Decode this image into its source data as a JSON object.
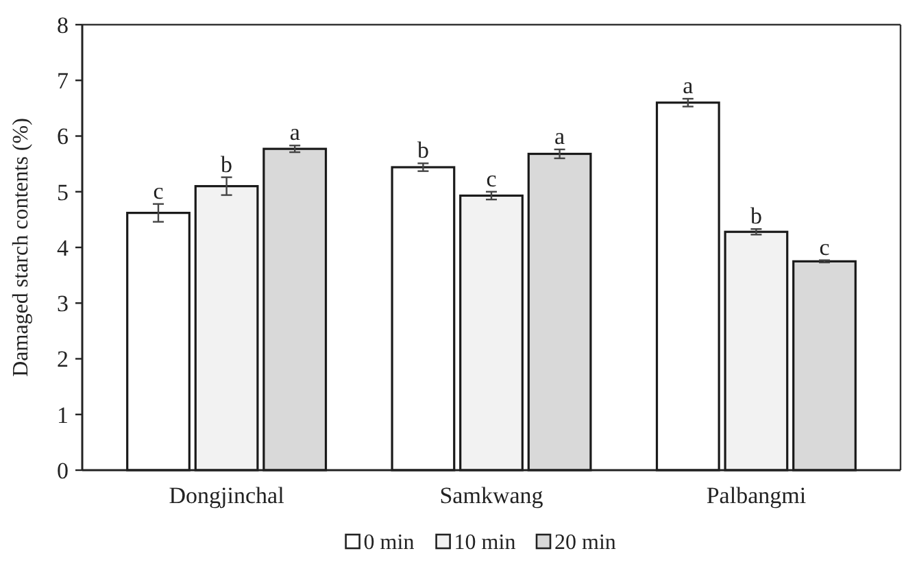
{
  "chart_data": {
    "type": "bar",
    "ylabel": "Damaged starch contents (%)",
    "categories": [
      "Dongjinchal",
      "Samkwang",
      "Palbangmi"
    ],
    "series": [
      {
        "name": "0 min",
        "color": "#ffffff",
        "values": [
          4.62,
          5.44,
          6.6
        ],
        "errors": [
          0.16,
          0.07,
          0.07
        ],
        "value_labels": [
          "c",
          "b",
          "a"
        ]
      },
      {
        "name": "10 min",
        "color": "#f2f2f2",
        "values": [
          5.1,
          4.93,
          4.28
        ],
        "errors": [
          0.16,
          0.07,
          0.05
        ],
        "value_labels": [
          "b",
          "c",
          "b"
        ]
      },
      {
        "name": "20 min",
        "color": "#d9d9d9",
        "values": [
          5.77,
          5.68,
          3.75
        ],
        "errors": [
          0.06,
          0.08,
          0.02
        ],
        "value_labels": [
          "a",
          "a",
          "c"
        ]
      }
    ],
    "ylim": [
      0,
      8
    ],
    "yticks": [
      0,
      1,
      2,
      3,
      4,
      5,
      6,
      7,
      8
    ],
    "grid": false,
    "legend": "bottom"
  }
}
